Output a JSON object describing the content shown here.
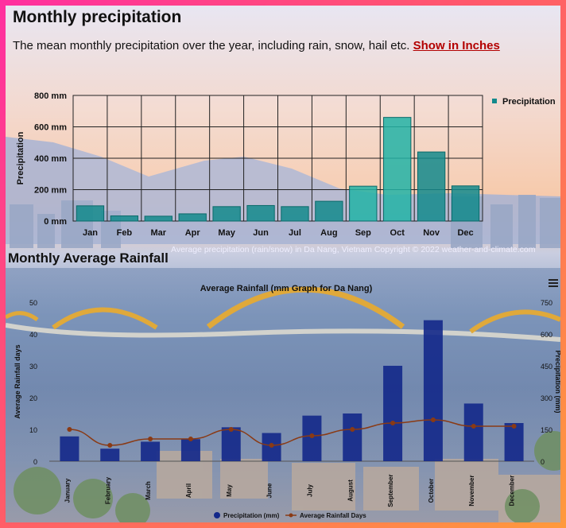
{
  "header": {
    "title": "Monthly precipitation",
    "subtitle": "The mean monthly precipitation over the year, including rain, snow, hail etc.",
    "toggle_link": "Show in Inches"
  },
  "chart_top": {
    "copyright": "Average precipitation (rain/snow) in Da Nang, Vietnam   Copyright © 2022  weather-and-climate.com"
  },
  "section2": {
    "title": "Monthly Average Rainfall"
  },
  "chart_data": [
    {
      "type": "bar",
      "title": "",
      "xlabel": "",
      "ylabel": "Precipitation",
      "ylim": [
        0,
        800
      ],
      "y_ticks": [
        "0 mm",
        "200 mm",
        "400 mm",
        "600 mm",
        "800 mm"
      ],
      "categories": [
        "Jan",
        "Feb",
        "Mar",
        "Apr",
        "May",
        "Jun",
        "Jul",
        "Aug",
        "Sep",
        "Oct",
        "Nov",
        "Dec"
      ],
      "series": [
        {
          "name": "Precipitation",
          "values": [
            97,
            33,
            31,
            46,
            92,
            99,
            92,
            126,
            222,
            660,
            440,
            224
          ]
        }
      ],
      "legend": "top-right",
      "grid": true,
      "colors": {
        "bar": "#138a8c",
        "bar_light": "#22b3a6"
      }
    },
    {
      "type": "bar+line",
      "title": "Average Rainfall (mm Graph for Da Nang)",
      "xlabel": "",
      "ylabel_left": "Average Rainfall days",
      "ylabel_right": "Precipitation (mm)",
      "ylim_left": [
        0,
        50
      ],
      "ylim_right": [
        0,
        750
      ],
      "y_ticks_left": [
        "0",
        "10",
        "20",
        "30",
        "40",
        "50"
      ],
      "y_ticks_right": [
        "0",
        "150",
        "300",
        "450",
        "600",
        "750"
      ],
      "categories": [
        "January",
        "February",
        "March",
        "April",
        "May",
        "June",
        "July",
        "August",
        "September",
        "October",
        "November",
        "December"
      ],
      "series": [
        {
          "name": "Precipitation (mm)",
          "axis": "right",
          "kind": "bar",
          "values": [
            117,
            59,
            92,
            104,
            160,
            133,
            215,
            225,
            450,
            665,
            272,
            180
          ]
        },
        {
          "name": "Average Rainfall Days",
          "axis": "left",
          "kind": "line",
          "values": [
            10,
            5,
            7,
            7,
            10,
            5,
            8,
            10,
            12,
            13,
            11,
            11
          ]
        }
      ],
      "legend": "bottom-center",
      "grid": false,
      "colors": {
        "bar": "#13288a",
        "line": "#8a3a14",
        "marker": "#8a3a14"
      }
    }
  ]
}
